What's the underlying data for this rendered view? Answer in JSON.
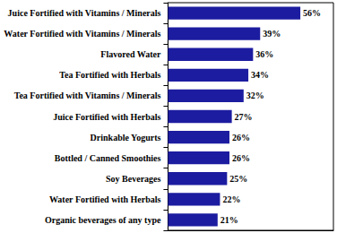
{
  "chart_data": {
    "type": "bar",
    "orientation": "horizontal",
    "categories": [
      "Juice Fortified with Vitamins / Minerals",
      "Water Fortified with Vitamins / Minerals",
      "Flavored Water",
      "Tea Fortified with Herbals",
      "Tea Fortified with Vitamins / Minerals",
      "Juice Fortified with Herbals",
      "Drinkable Yogurts",
      "Bottled / Canned Smoothies",
      "Soy Beverages",
      "Water Fortified with Herbals",
      "Organic beverages of any type"
    ],
    "values": [
      56,
      39,
      36,
      34,
      32,
      27,
      26,
      26,
      25,
      22,
      21
    ],
    "value_labels": [
      "56%",
      "39%",
      "36%",
      "34%",
      "32%",
      "27%",
      "26%",
      "26%",
      "25%",
      "22%",
      "21%"
    ],
    "color": "#1c1ca0",
    "xlim": [
      0,
      70
    ],
    "data_labels": true,
    "tick_labels": "y",
    "grid": false
  }
}
